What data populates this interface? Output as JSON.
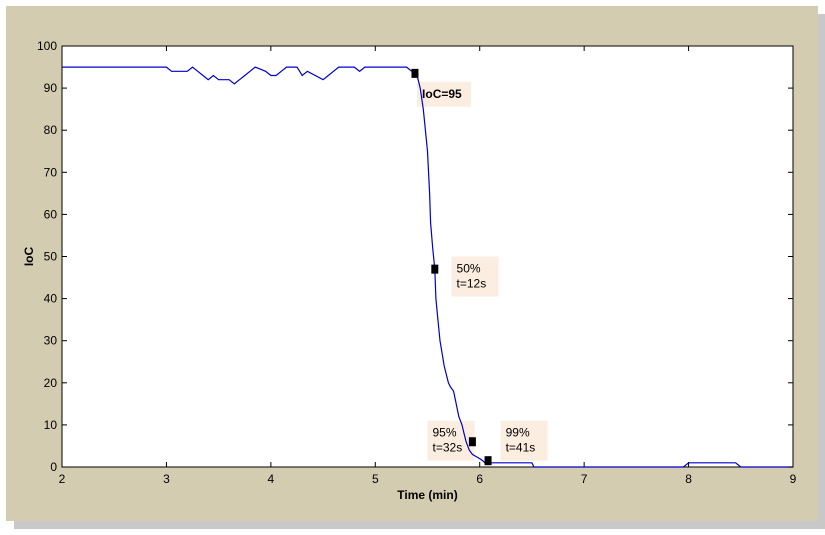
{
  "chart_data": {
    "type": "line",
    "title": "",
    "xlabel": "Time (min)",
    "ylabel": "IoC",
    "xlim": [
      2,
      9
    ],
    "ylim": [
      0,
      100
    ],
    "xticks": [
      "2",
      "3",
      "4",
      "5",
      "6",
      "7",
      "8",
      "9"
    ],
    "yticks": [
      "0",
      "10",
      "20",
      "30",
      "40",
      "50",
      "60",
      "70",
      "80",
      "90",
      "100"
    ],
    "grid": false,
    "colors": {
      "line": "#0000cc",
      "frame": "#d4ccb0",
      "annotation_bg": "#fbeee0"
    },
    "series": [
      {
        "x": [
          2,
          3.0,
          3.05,
          3.2,
          3.25,
          3.3,
          3.35,
          3.4,
          3.45,
          3.5,
          3.55,
          3.6,
          3.65,
          3.7,
          3.75,
          3.8,
          3.85,
          3.95,
          4.0,
          4.05,
          4.1,
          4.15,
          4.25,
          4.3,
          4.35,
          4.5,
          4.55,
          4.6,
          4.65,
          4.7,
          4.8,
          4.85,
          4.9,
          5.0,
          5.1,
          5.2,
          5.3,
          5.35,
          5.4,
          5.43,
          5.46,
          5.48,
          5.5,
          5.52,
          5.53,
          5.55,
          5.57,
          5.58,
          5.6,
          5.62,
          5.64,
          5.66,
          5.7,
          5.72,
          5.75,
          5.8,
          5.83,
          5.85,
          5.87,
          5.9,
          5.93,
          6.0,
          6.03,
          6.05,
          6.08,
          6.5,
          6.52,
          7.0,
          7.5,
          7.95,
          8.0,
          8.45,
          8.5,
          9.0
        ],
        "y": [
          95,
          95,
          94,
          94,
          95,
          94,
          93,
          92,
          93,
          92,
          92,
          92,
          91,
          92,
          93,
          94,
          95,
          94,
          93,
          93,
          94,
          95,
          95,
          93,
          94,
          92,
          93,
          94,
          95,
          95,
          95,
          94,
          95,
          95,
          95,
          95,
          95,
          94,
          93,
          90,
          85,
          80,
          75,
          65,
          58,
          52,
          47,
          40,
          35,
          30,
          27,
          24,
          20,
          19,
          18,
          12,
          10,
          8,
          6,
          4,
          3,
          2,
          1.5,
          1,
          1,
          1,
          0,
          0,
          0,
          0,
          1,
          1,
          0,
          0
        ]
      }
    ],
    "markers": [
      {
        "x": 5.38,
        "y": 93.5
      },
      {
        "x": 5.57,
        "y": 47
      },
      {
        "x": 5.93,
        "y": 6
      },
      {
        "x": 6.08,
        "y": 1.5
      }
    ],
    "annotations": [
      {
        "lines": [
          "IoC=95"
        ],
        "x": 5.4,
        "y": 91.5,
        "bold": true
      },
      {
        "lines": [
          "50%",
          "t=12s"
        ],
        "x": 5.73,
        "y": 50,
        "bold": false
      },
      {
        "lines": [
          "95%",
          "t=32s"
        ],
        "x": 5.5,
        "y": 11,
        "bold": false
      },
      {
        "lines": [
          "99%",
          "t=41s"
        ],
        "x": 6.2,
        "y": 11,
        "bold": false
      }
    ]
  }
}
